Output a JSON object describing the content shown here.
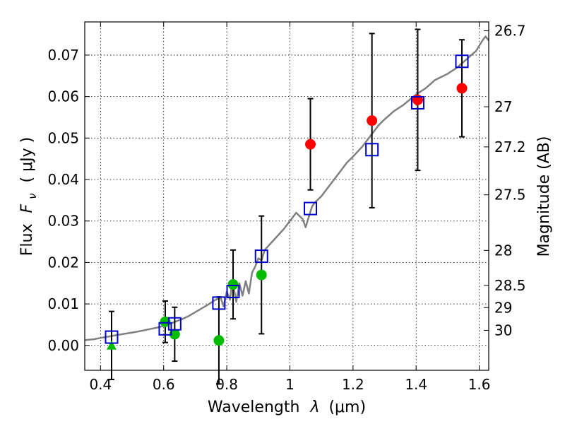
{
  "chart_data": {
    "type": "scatter",
    "xlabel_text": "Wavelength",
    "xlabel_symbol": "λ",
    "xlabel_unit": "(μm)",
    "ylabel_text": "Flux",
    "ylabel_symbol": "F",
    "ylabel_subscript": "ν",
    "ylabel_unit": "( μJy )",
    "y2label": "Magnitude (AB)",
    "xlim": [
      0.35,
      1.63
    ],
    "ylim": [
      -0.006,
      0.078
    ],
    "grid": true,
    "x_ticks": [
      0.4,
      0.6,
      0.8,
      1.0,
      1.2,
      1.4,
      1.6
    ],
    "x_tick_labels": [
      "0.4",
      "0.6",
      "0.8",
      "1",
      "1.2",
      "1.4",
      "1.6"
    ],
    "y_ticks": [
      0.0,
      0.01,
      0.02,
      0.03,
      0.04,
      0.05,
      0.06,
      0.07
    ],
    "y_tick_labels": [
      "0.00",
      "0.01",
      "0.02",
      "0.03",
      "0.04",
      "0.05",
      "0.06",
      "0.07"
    ],
    "mag_ticks": [
      26.7,
      27,
      27.2,
      27.5,
      28,
      28.5,
      29,
      30
    ],
    "mag_tick_labels": [
      "26.7",
      "27",
      "27.2",
      "27.5",
      "28",
      "28.5",
      "29",
      "30"
    ],
    "model_spectrum": {
      "color": "#808080",
      "x": [
        0.35,
        0.38,
        0.4,
        0.43,
        0.46,
        0.5,
        0.53,
        0.56,
        0.58,
        0.6,
        0.62,
        0.64,
        0.66,
        0.68,
        0.7,
        0.72,
        0.74,
        0.76,
        0.78,
        0.79,
        0.8,
        0.81,
        0.815,
        0.82,
        0.83,
        0.84,
        0.85,
        0.86,
        0.87,
        0.88,
        0.89,
        0.9,
        0.91,
        0.92,
        0.95,
        0.98,
        1.0,
        1.02,
        1.04,
        1.05,
        1.06,
        1.07,
        1.08,
        1.1,
        1.12,
        1.15,
        1.18,
        1.2,
        1.23,
        1.26,
        1.28,
        1.3,
        1.33,
        1.36,
        1.4,
        1.43,
        1.46,
        1.5,
        1.53,
        1.56,
        1.59,
        1.61,
        1.62,
        1.63
      ],
      "y": [
        0.0013,
        0.0015,
        0.0018,
        0.0022,
        0.0026,
        0.0031,
        0.0035,
        0.004,
        0.0043,
        0.0047,
        0.0052,
        0.0058,
        0.0064,
        0.0071,
        0.008,
        0.0089,
        0.0098,
        0.0108,
        0.0116,
        0.0094,
        0.013,
        0.011,
        0.0138,
        0.015,
        0.0105,
        0.015,
        0.012,
        0.0155,
        0.0125,
        0.0175,
        0.019,
        0.021,
        0.0205,
        0.023,
        0.0255,
        0.028,
        0.03,
        0.032,
        0.0305,
        0.0285,
        0.031,
        0.0335,
        0.0345,
        0.036,
        0.038,
        0.041,
        0.044,
        0.0455,
        0.048,
        0.051,
        0.053,
        0.0545,
        0.0565,
        0.058,
        0.0605,
        0.062,
        0.064,
        0.0655,
        0.067,
        0.069,
        0.071,
        0.0735,
        0.0745,
        0.0735
      ]
    },
    "model_points": {
      "marker": "open-square",
      "color": "#0000cc",
      "x": [
        0.435,
        0.605,
        0.635,
        0.775,
        0.82,
        0.91,
        1.065,
        1.26,
        1.405,
        1.545
      ],
      "y": [
        0.002,
        0.004,
        0.0052,
        0.0102,
        0.013,
        0.0215,
        0.033,
        0.0472,
        0.0585,
        0.0685
      ]
    },
    "green_points": {
      "marker": "filled-circle",
      "color": "#00bb00",
      "x": [
        0.605,
        0.635,
        0.775,
        0.82,
        0.91
      ],
      "y": [
        0.0057,
        0.0027,
        0.0012,
        0.0147,
        0.017
      ],
      "yerr": [
        0.005,
        0.0065,
        0.0105,
        0.0083,
        0.0142
      ]
    },
    "red_points": {
      "marker": "filled-circle",
      "color": "#ff0000",
      "x": [
        1.065,
        1.26,
        1.405,
        1.545
      ],
      "y": [
        0.0485,
        0.0542,
        0.0592,
        0.062
      ],
      "yerr": [
        0.011,
        0.021,
        0.017,
        0.0117
      ]
    },
    "upper_limit": {
      "marker": "filled-triangle",
      "color": "#00bb00",
      "x": 0.435,
      "y": 0.0,
      "yerr": 0.0082
    }
  }
}
